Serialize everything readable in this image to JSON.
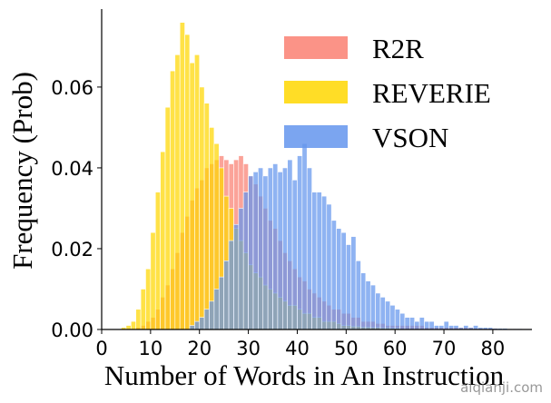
{
  "chart_data": {
    "type": "histogram",
    "xlabel": "Number of Words in An Instruction",
    "ylabel": "Frequency (Prob)",
    "watermark": "aiqianji.com",
    "legend": "upper right",
    "xlim": [
      0,
      88
    ],
    "ylim": [
      0,
      0.0793
    ],
    "xticks": [
      0,
      10,
      20,
      30,
      40,
      50,
      60,
      70,
      80
    ],
    "yticks": [
      {
        "value": 0,
        "label": "0.00"
      },
      0.02,
      0.04,
      0.06
    ],
    "bins": [
      0,
      1,
      2,
      3,
      4,
      5,
      6,
      7,
      8,
      9,
      10,
      11,
      12,
      13,
      14,
      15,
      16,
      17,
      18,
      19,
      20,
      21,
      22,
      23,
      24,
      25,
      26,
      27,
      28,
      29,
      30,
      31,
      32,
      33,
      34,
      35,
      36,
      37,
      38,
      39,
      40,
      41,
      42,
      43,
      44,
      45,
      46,
      47,
      48,
      49,
      50,
      51,
      52,
      53,
      54,
      55,
      56,
      57,
      58,
      59,
      60,
      61,
      62,
      63,
      64,
      65,
      66,
      67,
      68,
      69,
      70,
      71,
      72,
      73,
      74,
      75,
      76,
      77,
      78,
      79,
      80,
      81,
      82,
      83,
      84,
      85,
      86
    ],
    "series": [
      {
        "name": "R2R",
        "color": "#fa8072",
        "values": [
          0,
          0,
          0,
          0,
          0,
          0,
          0,
          0.0005,
          0.001,
          0.002,
          0.003,
          0.005,
          0.008,
          0.011,
          0.015,
          0.019,
          0.024,
          0.028,
          0.032,
          0.035,
          0.037,
          0.04,
          0.041,
          0.042,
          0.043,
          0.042,
          0.041,
          0.042,
          0.043,
          0.041,
          0.038,
          0.036,
          0.033,
          0.03,
          0.027,
          0.025,
          0.022,
          0.019,
          0.017,
          0.015,
          0.013,
          0.012,
          0.01,
          0.009,
          0.008,
          0.007,
          0.006,
          0.005,
          0.005,
          0.004,
          0.004,
          0.003,
          0.003,
          0.002,
          0.002,
          0.002,
          0.0015,
          0.0015,
          0.001,
          0.001,
          0.001,
          0.001,
          0.001,
          0.001,
          0.001,
          0.001,
          0.0005,
          0.0005,
          0.0005,
          0.0005,
          0.0005,
          0.0005,
          0.0005,
          0.0005,
          0.0005,
          0.0005,
          0.0003,
          0.0003,
          0.0003,
          0.0003,
          0.0003,
          0.0002,
          0.0002,
          0.0002,
          0.0002,
          0.0002
        ]
      },
      {
        "name": "REVERIE",
        "color": "#ffd700",
        "values": [
          0,
          0,
          0,
          0,
          0.0005,
          0.001,
          0.002,
          0.005,
          0.01,
          0.015,
          0.024,
          0.034,
          0.044,
          0.055,
          0.064,
          0.068,
          0.076,
          0.073,
          0.066,
          0.068,
          0.06,
          0.056,
          0.05,
          0.046,
          0.04,
          0.033,
          0.03,
          0.025,
          0.022,
          0.019,
          0.016,
          0.014,
          0.013,
          0.011,
          0.01,
          0.009,
          0.008,
          0.007,
          0.006,
          0.006,
          0.005,
          0.004,
          0.004,
          0.003,
          0.003,
          0.002,
          0.002,
          0.002,
          0.0015,
          0.001,
          0.001,
          0.0008,
          0.0008,
          0.0006,
          0.0006,
          0.0005,
          0.0005,
          0.0004,
          0.0004,
          0.0003,
          0.0003,
          0,
          0,
          0,
          0,
          0,
          0,
          0,
          0,
          0,
          0,
          0,
          0,
          0,
          0,
          0,
          0,
          0,
          0,
          0,
          0,
          0,
          0,
          0,
          0,
          0
        ]
      },
      {
        "name": "VSON",
        "color": "#6495ed",
        "values": [
          0,
          0,
          0,
          0,
          0,
          0,
          0,
          0,
          0,
          0,
          0,
          0,
          0,
          0,
          0,
          0,
          0,
          0,
          0.001,
          0.002,
          0.003,
          0.005,
          0.007,
          0.01,
          0.013,
          0.017,
          0.022,
          0.026,
          0.03,
          0.034,
          0.038,
          0.039,
          0.04,
          0.038,
          0.04,
          0.041,
          0.039,
          0.04,
          0.042,
          0.037,
          0.043,
          0.046,
          0.04,
          0.034,
          0.034,
          0.033,
          0.031,
          0.027,
          0.025,
          0.024,
          0.021,
          0.023,
          0.017,
          0.014,
          0.012,
          0.011,
          0.009,
          0.008,
          0.007,
          0.006,
          0.005,
          0.004,
          0.003,
          0.003,
          0.002,
          0.003,
          0.002,
          0.002,
          0.001,
          0.001,
          0.002,
          0.001,
          0.001,
          0.0005,
          0.001,
          0.0005,
          0.001,
          0.0005,
          0.0005,
          0.0005,
          0.0003,
          0.0003,
          0.0003,
          0.0002,
          0.0002,
          0.0002
        ]
      }
    ]
  }
}
